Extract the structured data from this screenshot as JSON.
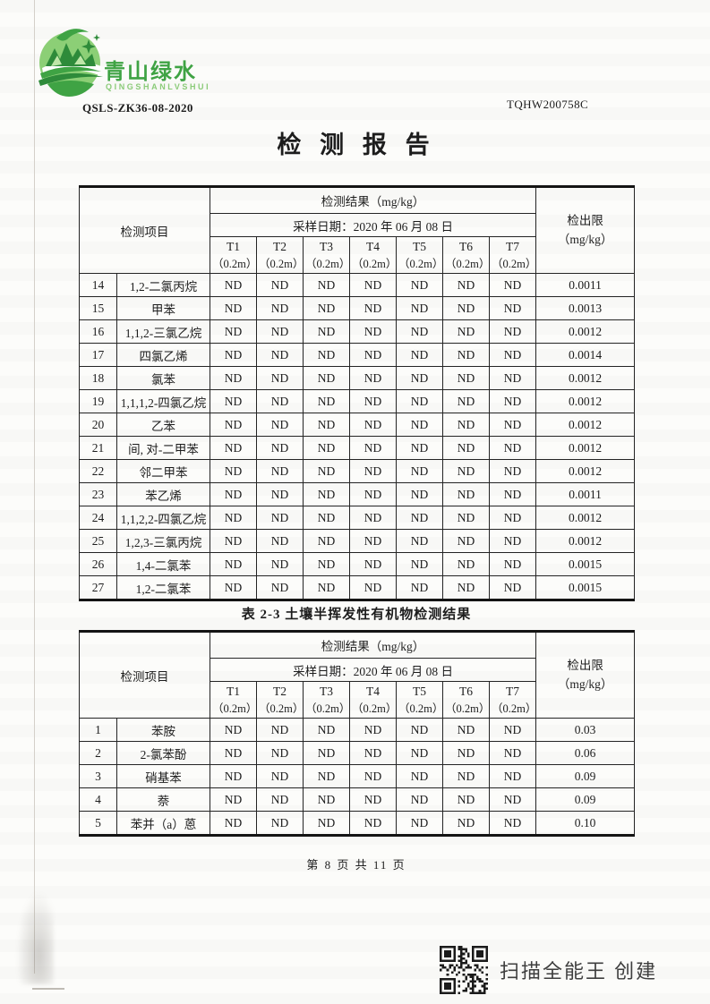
{
  "logo": {
    "name_cn": "青山绿水",
    "name_en": "QINGSHANLVSHUI",
    "primary_color": "#3fa344",
    "light_color": "#8bcb79",
    "dark_color": "#2e8b3a"
  },
  "header": {
    "doc_code": "QSLS-ZK36-08-2020",
    "report_code": "TQHW200758C",
    "title": "检 测 报 告"
  },
  "shared_table_header": {
    "item_label": "检测项目",
    "result_label": "检测结果（mg/kg）",
    "sampling_date_label": "采样日期：2020 年 06 月 08 日",
    "limit_label_line1": "检出限",
    "limit_label_line2": "（mg/kg）",
    "sample_columns": [
      {
        "id": "T1",
        "depth": "（0.2m）"
      },
      {
        "id": "T2",
        "depth": "（0.2m）"
      },
      {
        "id": "T3",
        "depth": "（0.2m）"
      },
      {
        "id": "T4",
        "depth": "（0.2m）"
      },
      {
        "id": "T5",
        "depth": "（0.2m）"
      },
      {
        "id": "T6",
        "depth": "（0.2m）"
      },
      {
        "id": "T7",
        "depth": "（0.2m）"
      }
    ]
  },
  "table1": {
    "rows": [
      {
        "no": "14",
        "item": "1,2-二氯丙烷",
        "values": [
          "ND",
          "ND",
          "ND",
          "ND",
          "ND",
          "ND",
          "ND"
        ],
        "limit": "0.0011"
      },
      {
        "no": "15",
        "item": "甲苯",
        "values": [
          "ND",
          "ND",
          "ND",
          "ND",
          "ND",
          "ND",
          "ND"
        ],
        "limit": "0.0013"
      },
      {
        "no": "16",
        "item": "1,1,2-三氯乙烷",
        "values": [
          "ND",
          "ND",
          "ND",
          "ND",
          "ND",
          "ND",
          "ND"
        ],
        "limit": "0.0012"
      },
      {
        "no": "17",
        "item": "四氯乙烯",
        "values": [
          "ND",
          "ND",
          "ND",
          "ND",
          "ND",
          "ND",
          "ND"
        ],
        "limit": "0.0014"
      },
      {
        "no": "18",
        "item": "氯苯",
        "values": [
          "ND",
          "ND",
          "ND",
          "ND",
          "ND",
          "ND",
          "ND"
        ],
        "limit": "0.0012"
      },
      {
        "no": "19",
        "item": "1,1,1,2-四氯乙烷",
        "values": [
          "ND",
          "ND",
          "ND",
          "ND",
          "ND",
          "ND",
          "ND"
        ],
        "limit": "0.0012"
      },
      {
        "no": "20",
        "item": "乙苯",
        "values": [
          "ND",
          "ND",
          "ND",
          "ND",
          "ND",
          "ND",
          "ND"
        ],
        "limit": "0.0012"
      },
      {
        "no": "21",
        "item": "间, 对-二甲苯",
        "values": [
          "ND",
          "ND",
          "ND",
          "ND",
          "ND",
          "ND",
          "ND"
        ],
        "limit": "0.0012"
      },
      {
        "no": "22",
        "item": "邻二甲苯",
        "values": [
          "ND",
          "ND",
          "ND",
          "ND",
          "ND",
          "ND",
          "ND"
        ],
        "limit": "0.0012"
      },
      {
        "no": "23",
        "item": "苯乙烯",
        "values": [
          "ND",
          "ND",
          "ND",
          "ND",
          "ND",
          "ND",
          "ND"
        ],
        "limit": "0.0011"
      },
      {
        "no": "24",
        "item": "1,1,2,2-四氯乙烷",
        "values": [
          "ND",
          "ND",
          "ND",
          "ND",
          "ND",
          "ND",
          "ND"
        ],
        "limit": "0.0012"
      },
      {
        "no": "25",
        "item": "1,2,3-三氯丙烷",
        "values": [
          "ND",
          "ND",
          "ND",
          "ND",
          "ND",
          "ND",
          "ND"
        ],
        "limit": "0.0012"
      },
      {
        "no": "26",
        "item": "1,4-二氯苯",
        "values": [
          "ND",
          "ND",
          "ND",
          "ND",
          "ND",
          "ND",
          "ND"
        ],
        "limit": "0.0015"
      },
      {
        "no": "27",
        "item": "1,2-二氯苯",
        "values": [
          "ND",
          "ND",
          "ND",
          "ND",
          "ND",
          "ND",
          "ND"
        ],
        "limit": "0.0015"
      }
    ]
  },
  "table2": {
    "caption": "表 2-3 土壤半挥发性有机物检测结果",
    "rows": [
      {
        "no": "1",
        "item": "苯胺",
        "values": [
          "ND",
          "ND",
          "ND",
          "ND",
          "ND",
          "ND",
          "ND"
        ],
        "limit": "0.03"
      },
      {
        "no": "2",
        "item": "2-氯苯酚",
        "values": [
          "ND",
          "ND",
          "ND",
          "ND",
          "ND",
          "ND",
          "ND"
        ],
        "limit": "0.06"
      },
      {
        "no": "3",
        "item": "硝基苯",
        "values": [
          "ND",
          "ND",
          "ND",
          "ND",
          "ND",
          "ND",
          "ND"
        ],
        "limit": "0.09"
      },
      {
        "no": "4",
        "item": "萘",
        "values": [
          "ND",
          "ND",
          "ND",
          "ND",
          "ND",
          "ND",
          "ND"
        ],
        "limit": "0.09"
      },
      {
        "no": "5",
        "item": "苯并（a）蒽",
        "values": [
          "ND",
          "ND",
          "ND",
          "ND",
          "ND",
          "ND",
          "ND"
        ],
        "limit": "0.10"
      }
    ]
  },
  "footer": {
    "page_info": "第 8 页 共 11 页"
  },
  "scan_badge": {
    "label": "扫描全能王 创建"
  }
}
